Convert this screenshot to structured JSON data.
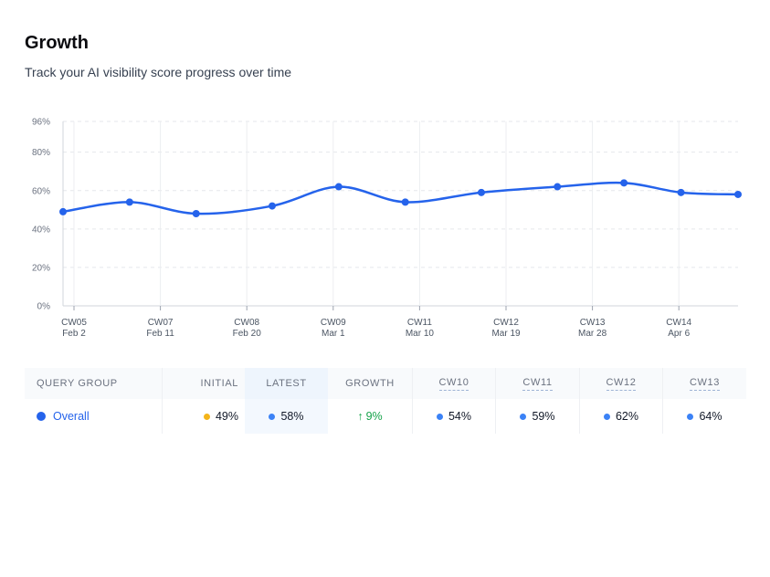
{
  "header": {
    "title": "Growth",
    "subtitle": "Track your AI visibility score progress over time"
  },
  "colors": {
    "line": "#2563eb",
    "initial_dot": "#f4b41a",
    "blue_dot": "#3b82f6",
    "growth_up": "#16a34a",
    "grid": "#e5e7eb"
  },
  "chart_data": {
    "type": "line",
    "title": "",
    "xlabel": "",
    "ylabel": "",
    "ylim": [
      0,
      96
    ],
    "y_ticks": [
      "0%",
      "20%",
      "40%",
      "60%",
      "80%",
      "96%"
    ],
    "y_tick_values": [
      0,
      20,
      40,
      60,
      80,
      96
    ],
    "x_ticks": [
      {
        "week": "CW05",
        "date": "Feb 2"
      },
      {
        "week": "CW07",
        "date": "Feb 11"
      },
      {
        "week": "CW08",
        "date": "Feb 20"
      },
      {
        "week": "CW09",
        "date": "Mar 1"
      },
      {
        "week": "CW11",
        "date": "Mar 10"
      },
      {
        "week": "CW12",
        "date": "Mar 19"
      },
      {
        "week": "CW13",
        "date": "Mar 28"
      },
      {
        "week": "CW14",
        "date": "Apr 6"
      }
    ],
    "x_range": [
      "2025-02-01",
      "2025-04-13"
    ],
    "grid": true,
    "series": [
      {
        "name": "Overall",
        "points": [
          {
            "x": "2025-02-01",
            "y": 49
          },
          {
            "x": "2025-02-08",
            "y": 54
          },
          {
            "x": "2025-02-15",
            "y": 48
          },
          {
            "x": "2025-02-23",
            "y": 52
          },
          {
            "x": "2025-03-02",
            "y": 62
          },
          {
            "x": "2025-03-09",
            "y": 54
          },
          {
            "x": "2025-03-17",
            "y": 59
          },
          {
            "x": "2025-03-25",
            "y": 62
          },
          {
            "x": "2025-04-01",
            "y": 64
          },
          {
            "x": "2025-04-07",
            "y": 59
          },
          {
            "x": "2025-04-13",
            "y": 58
          }
        ]
      }
    ]
  },
  "table": {
    "headers": {
      "query_group": "QUERY GROUP",
      "initial": "INITIAL",
      "latest": "LATEST",
      "growth": "GROWTH",
      "weeks": [
        "CW10",
        "CW11",
        "CW12",
        "CW13"
      ]
    },
    "rows": [
      {
        "group": "Overall",
        "initial": "49%",
        "latest": "58%",
        "growth_arrow": "↑",
        "growth": "9%",
        "weeks": [
          "54%",
          "59%",
          "62%",
          "64%"
        ]
      }
    ]
  }
}
